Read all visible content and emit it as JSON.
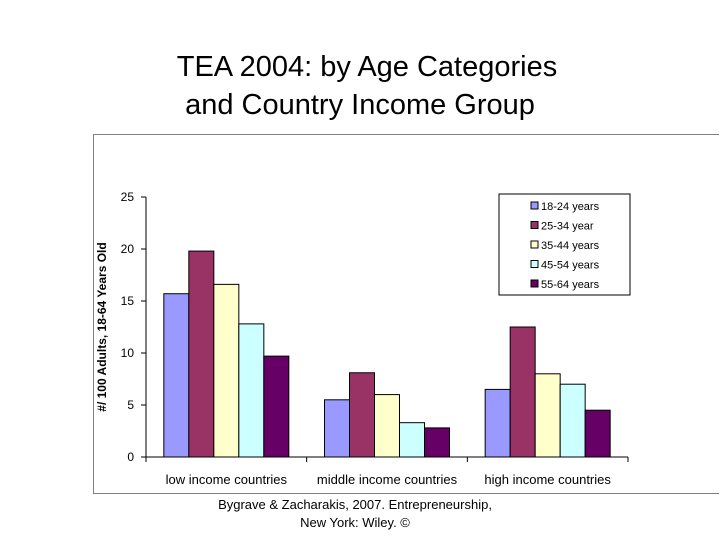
{
  "title_line1": "TEA 2004: by Age Categories",
  "title_line2": "and Country Income Group",
  "caption_line1": "Bygrave & Zacharakis, 2007.  Entrepreneurship,",
  "caption_line2": "New York: Wiley.  ©",
  "chart_data": {
    "type": "bar",
    "title": "",
    "xlabel": "",
    "ylabel": "#/ 100 Adults, 18-64 Years Old",
    "ylim": [
      0,
      25
    ],
    "yticks": [
      0,
      5,
      10,
      15,
      20,
      25
    ],
    "grid": false,
    "legend_position": "top-right",
    "categories": [
      "low income countries",
      "middle income countries",
      "high income countries"
    ],
    "series": [
      {
        "name": "18-24 years",
        "color": "#9999ff",
        "values": [
          15.7,
          5.5,
          6.5
        ]
      },
      {
        "name": "25-34 year",
        "color": "#993366",
        "values": [
          19.8,
          8.1,
          12.5
        ]
      },
      {
        "name": "35-44 years",
        "color": "#ffffcc",
        "values": [
          16.6,
          6.0,
          8.0
        ]
      },
      {
        "name": "45-54 years",
        "color": "#ccffff",
        "values": [
          12.8,
          3.3,
          7.0
        ]
      },
      {
        "name": "55-64 years",
        "color": "#660066",
        "values": [
          9.7,
          2.8,
          4.5
        ]
      }
    ]
  }
}
